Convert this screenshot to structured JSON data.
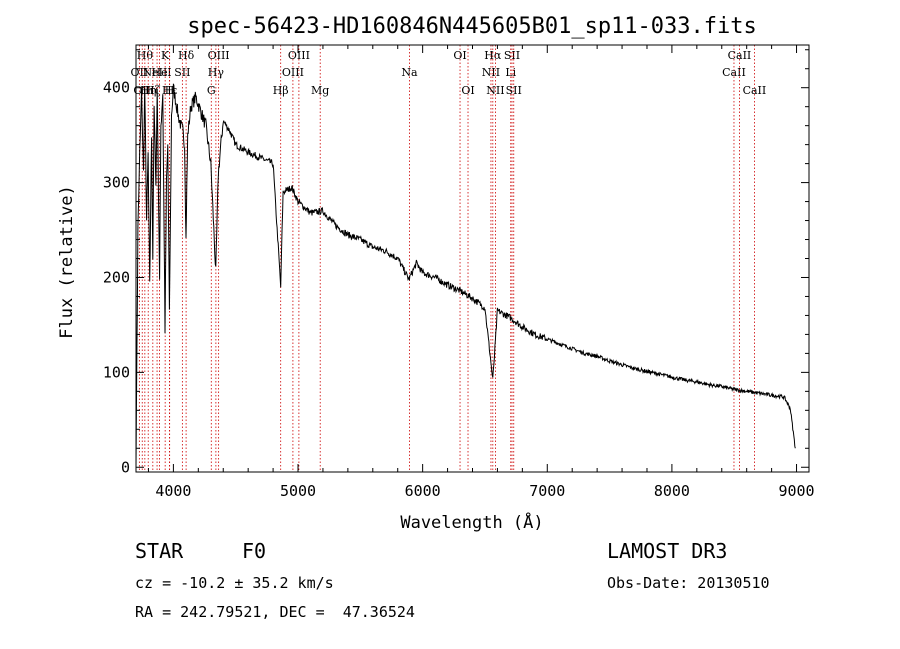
{
  "chart_data": {
    "type": "line",
    "title": "spec-56423-HD160846N445605B01_sp11-033.fits",
    "xlabel": "Wavelength (Å)",
    "ylabel": "Flux (relative)",
    "xlim": [
      3700,
      9100
    ],
    "ylim": [
      -5,
      445
    ],
    "xticks": [
      4000,
      5000,
      6000,
      7000,
      8000,
      9000
    ],
    "yticks": [
      0,
      100,
      200,
      300,
      400
    ],
    "series": [
      {
        "name": "spectrum",
        "anchors": [
          [
            3700,
            0
          ],
          [
            3705,
            80
          ],
          [
            3715,
            250
          ],
          [
            3730,
            330
          ],
          [
            3745,
            395
          ],
          [
            3760,
            310
          ],
          [
            3770,
            400
          ],
          [
            3785,
            260
          ],
          [
            3797,
            330
          ],
          [
            3810,
            190
          ],
          [
            3825,
            350
          ],
          [
            3835,
            220
          ],
          [
            3845,
            380
          ],
          [
            3860,
            300
          ],
          [
            3870,
            400
          ],
          [
            3889,
            200
          ],
          [
            3900,
            360
          ],
          [
            3915,
            395
          ],
          [
            3933,
            145
          ],
          [
            3945,
            300
          ],
          [
            3955,
            340
          ],
          [
            3968,
            160
          ],
          [
            3985,
            370
          ],
          [
            4000,
            400
          ],
          [
            4020,
            385
          ],
          [
            4040,
            370
          ],
          [
            4060,
            360
          ],
          [
            4075,
            355
          ],
          [
            4090,
            340
          ],
          [
            4101,
            240
          ],
          [
            4115,
            350
          ],
          [
            4140,
            380
          ],
          [
            4180,
            390
          ],
          [
            4220,
            375
          ],
          [
            4260,
            360
          ],
          [
            4300,
            320
          ],
          [
            4340,
            205
          ],
          [
            4360,
            310
          ],
          [
            4400,
            365
          ],
          [
            4450,
            355
          ],
          [
            4500,
            340
          ],
          [
            4600,
            332
          ],
          [
            4700,
            326
          ],
          [
            4800,
            320
          ],
          [
            4861,
            190
          ],
          [
            4880,
            290
          ],
          [
            4950,
            295
          ],
          [
            5000,
            280
          ],
          [
            5100,
            268
          ],
          [
            5200,
            270
          ],
          [
            5300,
            255
          ],
          [
            5400,
            245
          ],
          [
            5500,
            240
          ],
          [
            5600,
            232
          ],
          [
            5700,
            228
          ],
          [
            5800,
            220
          ],
          [
            5890,
            198
          ],
          [
            5950,
            215
          ],
          [
            6000,
            205
          ],
          [
            6100,
            200
          ],
          [
            6200,
            192
          ],
          [
            6300,
            186
          ],
          [
            6400,
            178
          ],
          [
            6500,
            168
          ],
          [
            6563,
            92
          ],
          [
            6600,
            165
          ],
          [
            6700,
            158
          ],
          [
            6800,
            148
          ],
          [
            6900,
            140
          ],
          [
            7000,
            135
          ],
          [
            7100,
            130
          ],
          [
            7200,
            125
          ],
          [
            7300,
            120
          ],
          [
            7400,
            117
          ],
          [
            7500,
            112
          ],
          [
            7600,
            108
          ],
          [
            7700,
            104
          ],
          [
            7800,
            101
          ],
          [
            7900,
            98
          ],
          [
            8000,
            95
          ],
          [
            8100,
            92
          ],
          [
            8200,
            90
          ],
          [
            8300,
            87
          ],
          [
            8400,
            85
          ],
          [
            8500,
            82
          ],
          [
            8600,
            80
          ],
          [
            8700,
            78
          ],
          [
            8800,
            76
          ],
          [
            8900,
            74
          ],
          [
            8950,
            62
          ],
          [
            8990,
            20
          ]
        ]
      }
    ],
    "lines": [
      {
        "wl": 3727,
        "label": "OII",
        "row": 2
      },
      {
        "wl": 3750,
        "label": "OII",
        "row": 3
      },
      {
        "wl": 3771,
        "label": "Hθ",
        "row": 1
      },
      {
        "wl": 3798,
        "label": "Hη",
        "row": 3
      },
      {
        "wl": 3835,
        "label": "Hζ",
        "row": 3
      },
      {
        "wl": 3869,
        "label": "NeIII",
        "row": 2
      },
      {
        "wl": 3889,
        "label": "He",
        "row": 2
      },
      {
        "wl": 3934,
        "label": "K",
        "row": 1
      },
      {
        "wl": 3969,
        "label": "H",
        "row": 3
      },
      {
        "wl": 3970,
        "label": "Hε",
        "row": 3
      },
      {
        "wl": 4072,
        "label": "SII",
        "row": 2
      },
      {
        "wl": 4102,
        "label": "Hδ",
        "row": 1
      },
      {
        "wl": 4304,
        "label": "G",
        "row": 3
      },
      {
        "wl": 4341,
        "label": "Hγ",
        "row": 2
      },
      {
        "wl": 4363,
        "label": "OIII",
        "row": 1
      },
      {
        "wl": 4861,
        "label": "Hβ",
        "row": 3
      },
      {
        "wl": 4959,
        "label": "OIII",
        "row": 2
      },
      {
        "wl": 5007,
        "label": "OIII",
        "row": 1
      },
      {
        "wl": 5178,
        "label": "Mg",
        "row": 3
      },
      {
        "wl": 5894,
        "label": "Na",
        "row": 2
      },
      {
        "wl": 6300,
        "label": "OI",
        "row": 1
      },
      {
        "wl": 6364,
        "label": "OI",
        "row": 3
      },
      {
        "wl": 6548,
        "label": "NII",
        "row": 2
      },
      {
        "wl": 6563,
        "label": "Hα",
        "row": 1
      },
      {
        "wl": 6584,
        "label": "NII",
        "row": 3
      },
      {
        "wl": 6707,
        "label": "Li",
        "row": 2
      },
      {
        "wl": 6717,
        "label": "SII",
        "row": 1
      },
      {
        "wl": 6731,
        "label": "SII",
        "row": 3
      },
      {
        "wl": 8498,
        "label": "CaII",
        "row": 2
      },
      {
        "wl": 8542,
        "label": "CaII",
        "row": 1
      },
      {
        "wl": 8662,
        "label": "CaII",
        "row": 3
      }
    ],
    "line_color": "#cc0000",
    "plot_color": "#000000"
  },
  "info": {
    "class_label": "STAR",
    "subclass": "F0",
    "cz": "cz = -10.2 ± 35.2 km/s",
    "radec": "RA = 242.79521, DEC =  47.36524",
    "survey": "LAMOST DR3",
    "obs_date": "Obs-Date: 20130510"
  }
}
